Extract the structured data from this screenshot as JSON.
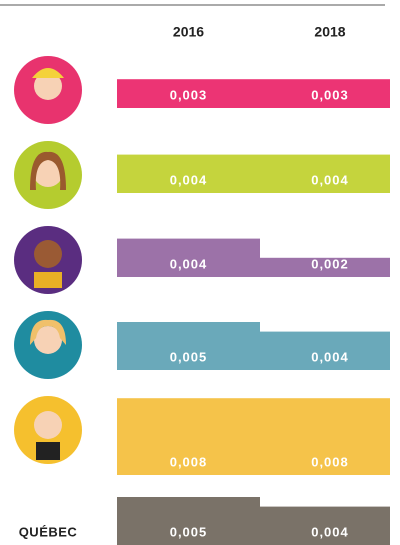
{
  "chart_data": {
    "type": "bar",
    "categories": [
      null,
      null,
      null,
      null,
      null,
      "QUÉBEC"
    ],
    "colors": [
      "#ec3474",
      "#c5d43d",
      "#9c72a8",
      "#6aa9ba",
      "#f5c34a",
      "#7a7268"
    ],
    "series": [
      {
        "name": "2016",
        "values": [
          0.003,
          0.004,
          0.004,
          0.005,
          0.008,
          0.005
        ],
        "value_labels": [
          "0,003",
          "0,004",
          "0,004",
          "0,005",
          "0,008",
          "0,005"
        ]
      },
      {
        "name": "2018",
        "values": [
          0.003,
          0.004,
          0.002,
          0.004,
          0.008,
          0.004
        ],
        "value_labels": [
          "0,003",
          "0,004",
          "0,002",
          "0,004",
          "0,008",
          "0,004"
        ]
      }
    ]
  }
}
